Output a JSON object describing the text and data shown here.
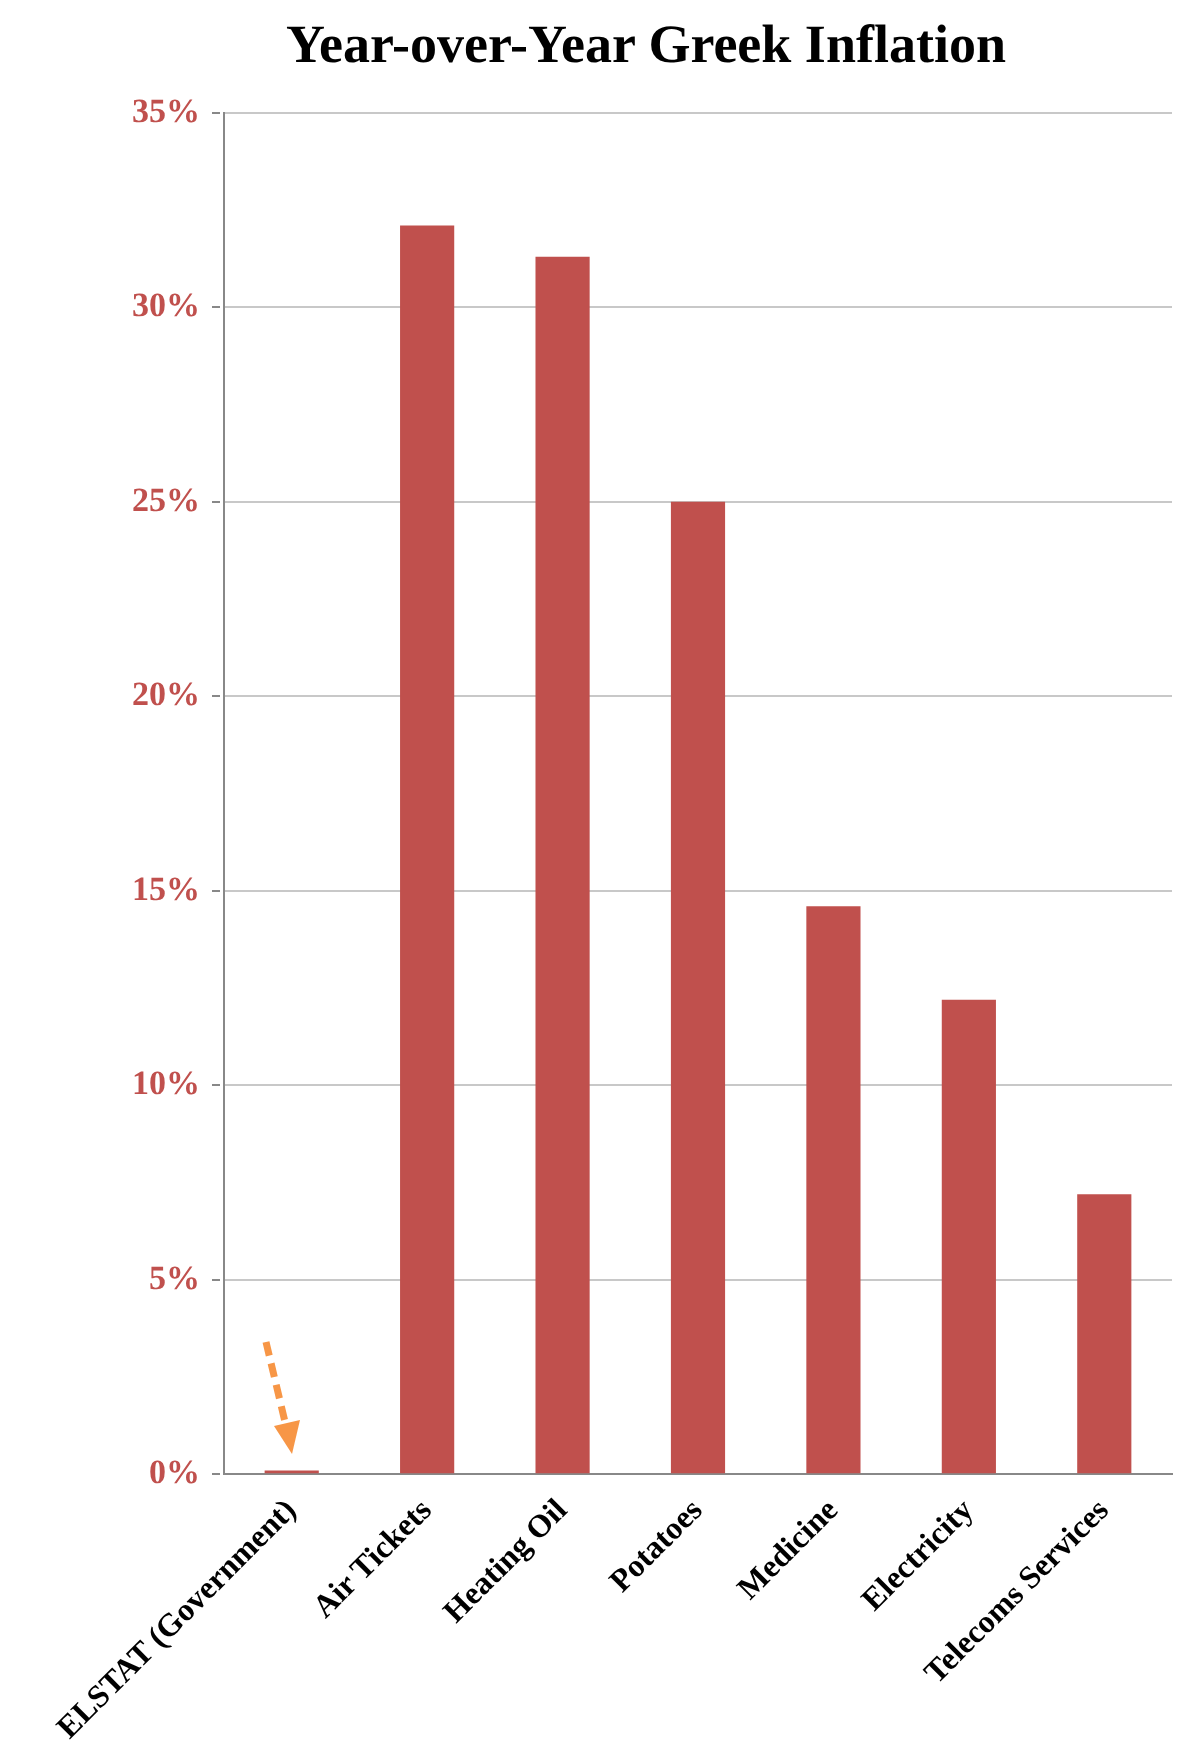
{
  "chart_data": {
    "type": "bar",
    "title": "Year-over-Year Greek Inflation",
    "categories": [
      "ELSTAT (Government)",
      "Air Tickets",
      "Heating Oil",
      "Potatoes",
      "Medicine",
      "Electricity",
      "Telecoms Services"
    ],
    "values": [
      0.1,
      32.1,
      31.3,
      25.0,
      14.6,
      12.2,
      7.2
    ],
    "color": "#c0504d",
    "ylim": [
      0,
      35
    ],
    "yticks": [
      {
        "value": 0,
        "label": "0%"
      },
      {
        "value": 5,
        "label": "5%"
      },
      {
        "value": 10,
        "label": "10%"
      },
      {
        "value": 15,
        "label": "15%"
      },
      {
        "value": 20,
        "label": "20%"
      },
      {
        "value": 25,
        "label": "25%"
      },
      {
        "value": 30,
        "label": "30%"
      },
      {
        "value": 35,
        "label": "35%"
      }
    ],
    "grid": "y",
    "legend": false
  }
}
